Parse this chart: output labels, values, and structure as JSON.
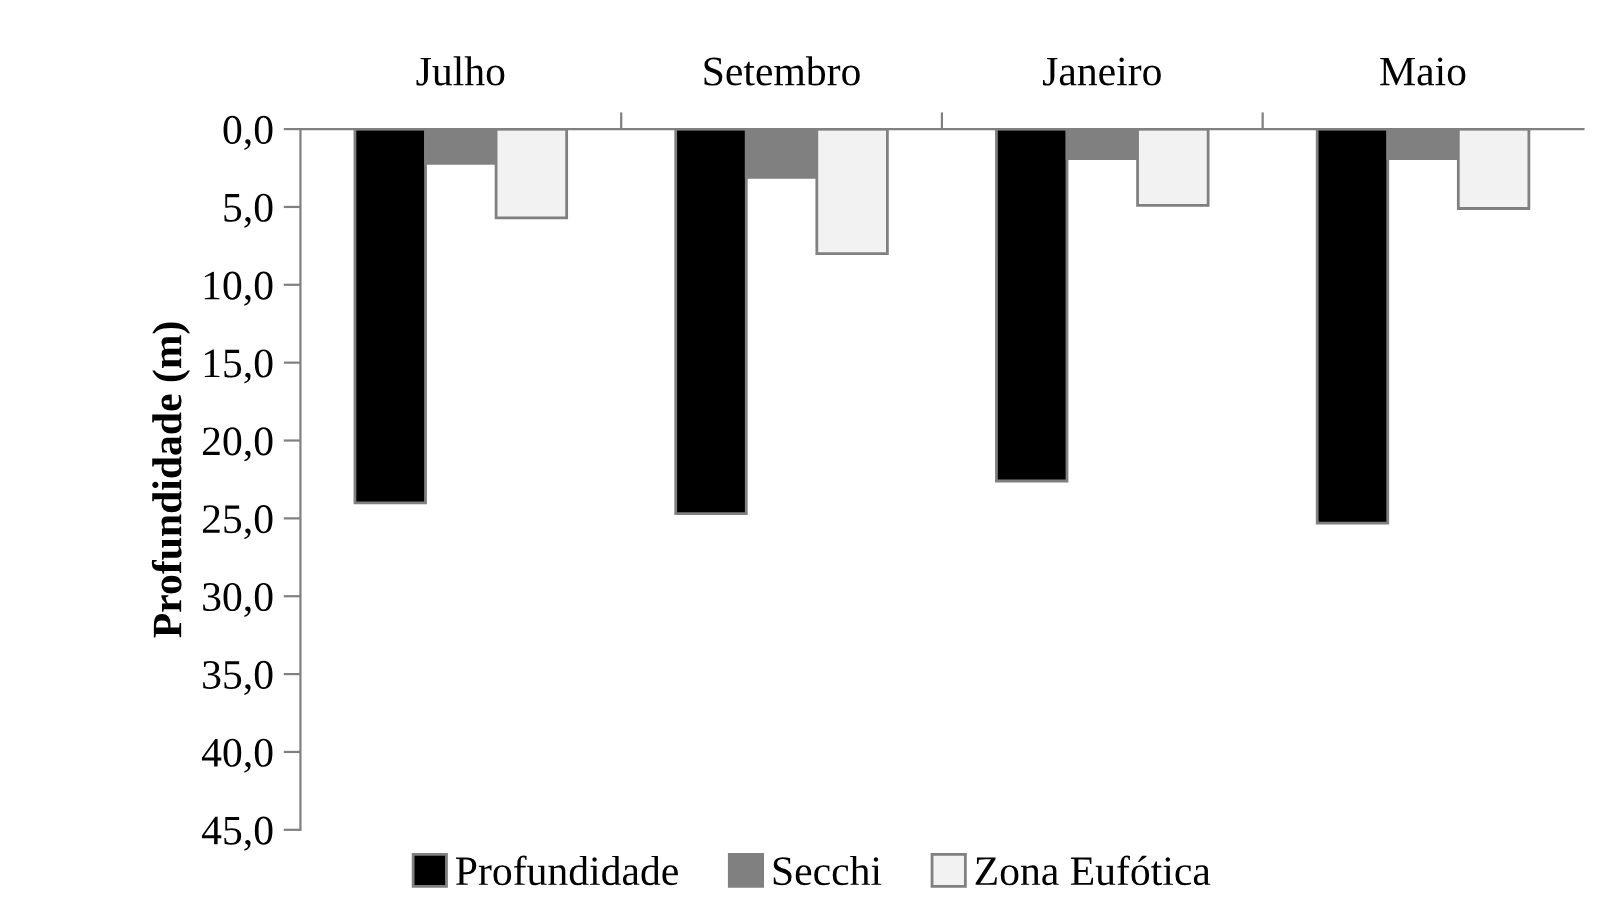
{
  "chart_data": {
    "type": "bar",
    "ylabel": "Profundidade (m)",
    "categories": [
      "Julho",
      "Setembro",
      "Janeiro",
      "Maio"
    ],
    "series": [
      {
        "name": "Profundidade",
        "color": "#000000",
        "values": [
          24.0,
          24.7,
          22.6,
          25.3
        ]
      },
      {
        "name": "Secchi",
        "color": "#808080",
        "values": [
          2.2,
          3.1,
          1.9,
          1.9
        ]
      },
      {
        "name": "Zona Eufótica",
        "color": "#f2f2f2",
        "values": [
          5.7,
          8.0,
          4.9,
          5.1
        ]
      }
    ],
    "ylim": [
      45,
      0
    ],
    "yticks": [
      {
        "value": 0,
        "label": "0,0"
      },
      {
        "value": 5,
        "label": "5,0"
      },
      {
        "value": 10,
        "label": "10,0"
      },
      {
        "value": 15,
        "label": "15,0"
      },
      {
        "value": 20,
        "label": "20,0"
      },
      {
        "value": 25,
        "label": "25,0"
      },
      {
        "value": 30,
        "label": "30,0"
      },
      {
        "value": 35,
        "label": "35,0"
      },
      {
        "value": 40,
        "label": "40,0"
      },
      {
        "value": 45,
        "label": "45,0"
      }
    ],
    "grid": false,
    "legend": "bottom"
  }
}
